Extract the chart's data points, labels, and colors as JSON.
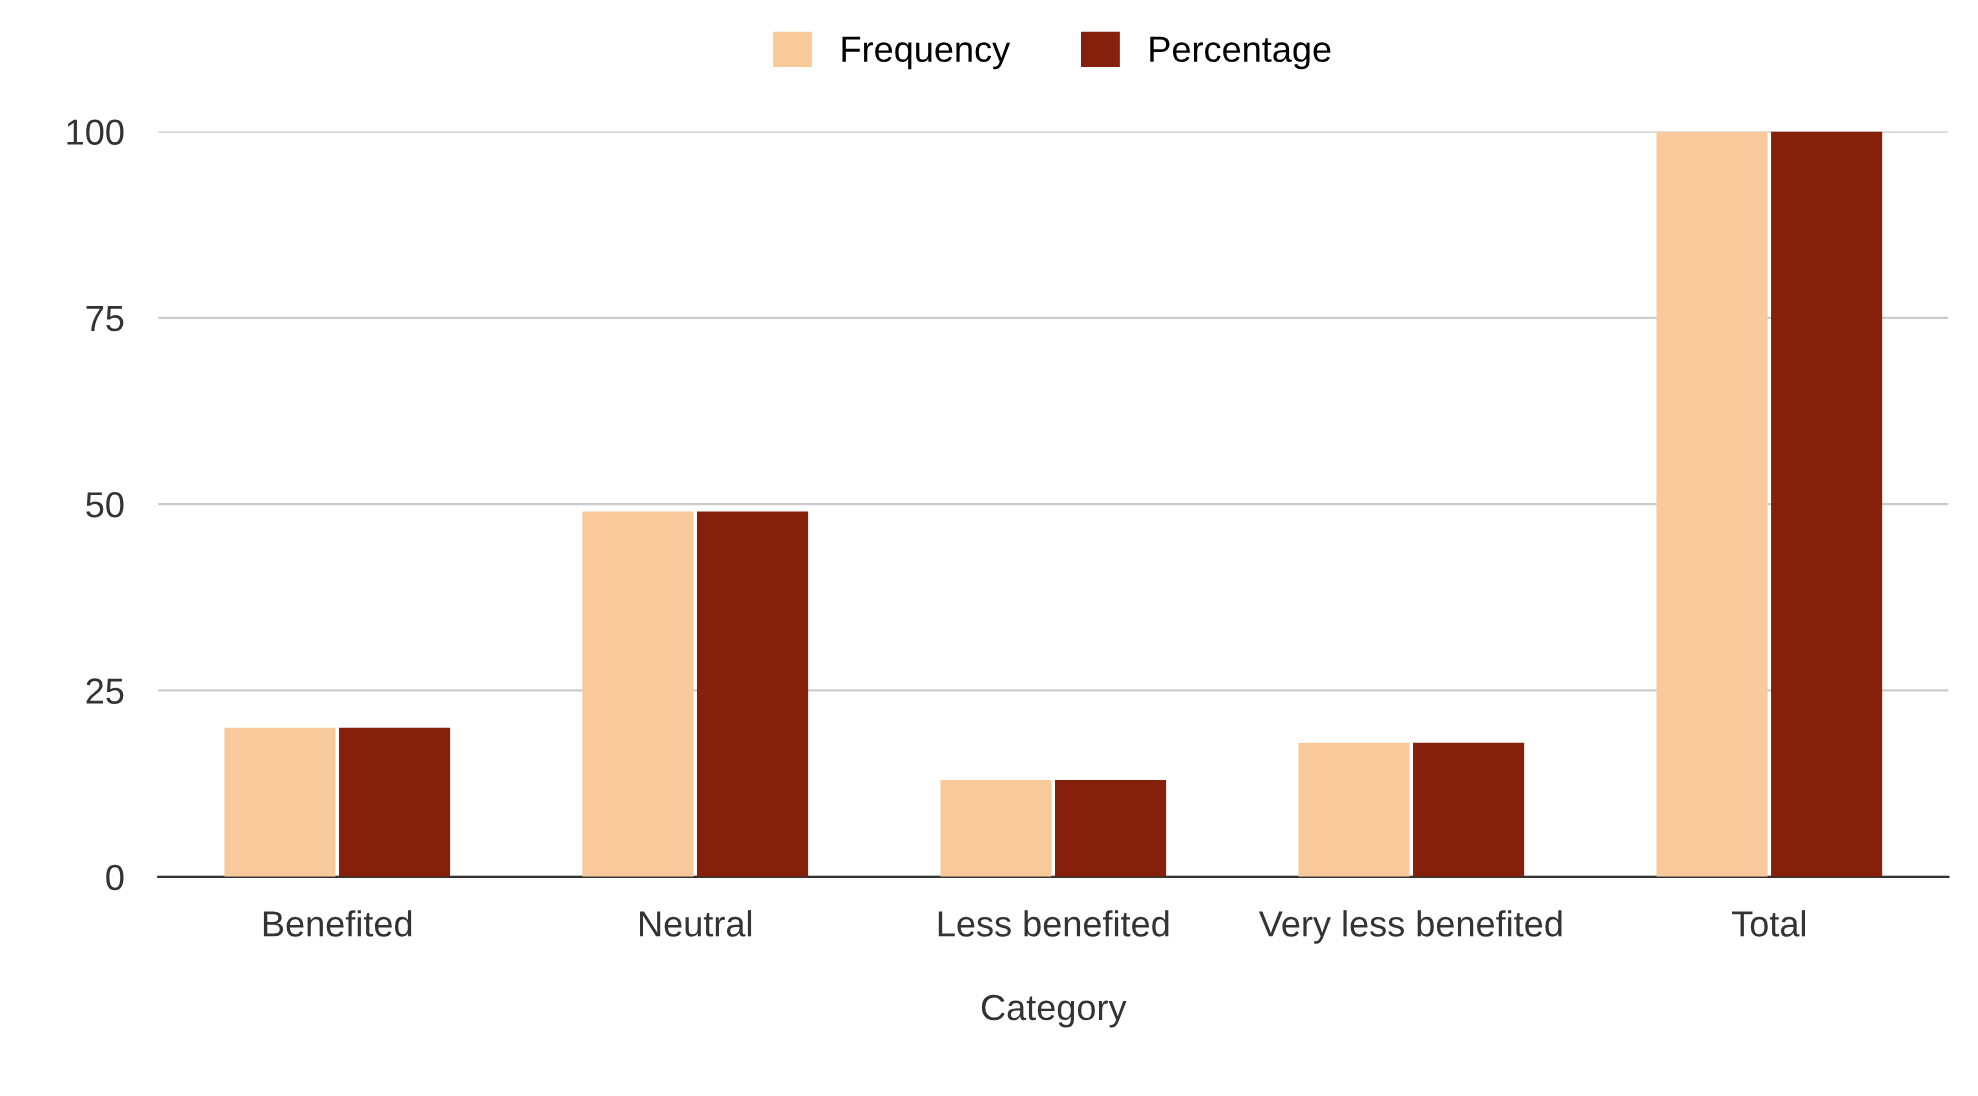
{
  "chart_data": {
    "type": "bar",
    "xlabel": "Category",
    "categories": [
      "Benefited",
      "Neutral",
      "Less benefited",
      "Very less benefited",
      "Total"
    ],
    "series": [
      {
        "name": "Frequency",
        "color": "#f8c99b",
        "values": [
          20,
          49,
          13,
          18,
          100
        ]
      },
      {
        "name": "Percentage",
        "color": "#85200c",
        "values": [
          20,
          49,
          13,
          18,
          100
        ]
      }
    ],
    "ylim": [
      0,
      100
    ],
    "yticks": [
      0,
      25,
      50,
      75,
      100
    ],
    "grid": "y",
    "legend": "top"
  }
}
